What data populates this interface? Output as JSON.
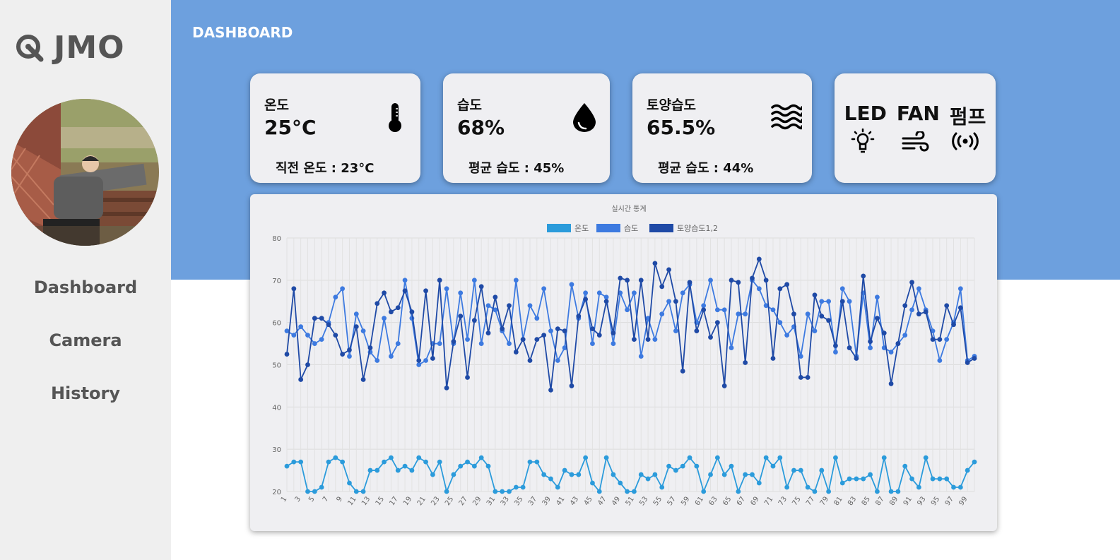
{
  "sidebar": {
    "logo_text": "JMO",
    "nav": [
      {
        "label": "Dashboard"
      },
      {
        "label": "Camera"
      },
      {
        "label": "History"
      }
    ]
  },
  "header": {
    "title": "DASHBOARD"
  },
  "cards": {
    "temperature": {
      "label": "온도",
      "value": "25°C",
      "sub": "직전 온도 : 23°C",
      "icon": "thermometer-icon"
    },
    "humidity": {
      "label": "습도",
      "value": "68%",
      "sub": "평균 습도 : 45%",
      "icon": "droplet-icon"
    },
    "soil": {
      "label": "토양습도",
      "value": "65.5%",
      "sub": "평균 습도 : 44%",
      "icon": "waves-icon"
    },
    "devices": {
      "led": "LED",
      "fan": "FAN",
      "pump": "펌프",
      "icons": [
        "bulb-icon",
        "wind-icon",
        "signal-icon"
      ]
    }
  },
  "colors": {
    "sidebar_bg": "#efefef",
    "header_bg": "#6da0de",
    "temp": "#2b9bdb",
    "humidity": "#3d7ae0",
    "soil": "#1f4aa6"
  },
  "chart_data": {
    "type": "line",
    "title": "실시간 통계",
    "legend_position": "top",
    "ylim": [
      20,
      80
    ],
    "yticks": [
      20,
      30,
      40,
      50,
      60,
      70,
      80
    ],
    "x": [
      1,
      2,
      3,
      4,
      5,
      6,
      7,
      8,
      9,
      10,
      11,
      12,
      13,
      14,
      15,
      16,
      17,
      18,
      19,
      20,
      21,
      22,
      23,
      24,
      25,
      26,
      27,
      28,
      29,
      30,
      31,
      32,
      33,
      34,
      35,
      36,
      37,
      38,
      39,
      40,
      41,
      42,
      43,
      44,
      45,
      46,
      47,
      48,
      49,
      50,
      51,
      52,
      53,
      54,
      55,
      56,
      57,
      58,
      59,
      60,
      61,
      62,
      63,
      64,
      65,
      66,
      67,
      68,
      69,
      70,
      71,
      72,
      73,
      74,
      75,
      76,
      77,
      78,
      79,
      80,
      81,
      82,
      83,
      84,
      85,
      86,
      87,
      88,
      89,
      90,
      91,
      92,
      93,
      94,
      95,
      96,
      97,
      98,
      99,
      100
    ],
    "xtick_labels": [
      "1",
      "3",
      "5",
      "7",
      "9",
      "11",
      "13",
      "15",
      "17",
      "19",
      "21",
      "23",
      "25",
      "27",
      "29",
      "31",
      "33",
      "35",
      "37",
      "39",
      "41",
      "43",
      "45",
      "47",
      "49",
      "51",
      "53",
      "55",
      "57",
      "59",
      "61",
      "63",
      "65",
      "67",
      "69",
      "71",
      "73",
      "75",
      "77",
      "79",
      "81",
      "83",
      "85",
      "87",
      "89",
      "91",
      "93",
      "95",
      "97",
      "99"
    ],
    "series": [
      {
        "name": "온도",
        "color": "#2b9bdb",
        "values": [
          26,
          27,
          27,
          20,
          20,
          21,
          27,
          28,
          27,
          22,
          20,
          20,
          25,
          25,
          27,
          28,
          25,
          26,
          25,
          28,
          27,
          24,
          27,
          20,
          24,
          26,
          27,
          26,
          28,
          26,
          20,
          20,
          20,
          21,
          21,
          27,
          27,
          24,
          23,
          21,
          25,
          24,
          24,
          28,
          22,
          20,
          28,
          24,
          22,
          20,
          20,
          24,
          23,
          24,
          21,
          26,
          25,
          26,
          28,
          26,
          20,
          24,
          28,
          24,
          26,
          20,
          24,
          24,
          22,
          28,
          26,
          28,
          21,
          25,
          25,
          21,
          20,
          25,
          20,
          28,
          22,
          23,
          23,
          23,
          24,
          20,
          28,
          20,
          20,
          26,
          23,
          21,
          28,
          23,
          23,
          23,
          21,
          21,
          25,
          27
        ]
      },
      {
        "name": "습도",
        "color": "#3d7ae0",
        "values": [
          58,
          57,
          59,
          57,
          55,
          56,
          60,
          66,
          68,
          52,
          62,
          58,
          53,
          51,
          61,
          52,
          55,
          70,
          61,
          50,
          51,
          55,
          55,
          68,
          55,
          67,
          56,
          70,
          55,
          64,
          63,
          58,
          55,
          70,
          56,
          64,
          61,
          68,
          58,
          51,
          54,
          69,
          61,
          67,
          55,
          67,
          66,
          55,
          67,
          63,
          67,
          52,
          61,
          56,
          62,
          65,
          58,
          67,
          69,
          60,
          64,
          70,
          63,
          63,
          54,
          62,
          62,
          70,
          68,
          64,
          63,
          60,
          57,
          59,
          52,
          62,
          58,
          65,
          65,
          53,
          68,
          65,
          52,
          67,
          54,
          66,
          54,
          53,
          55,
          57,
          63,
          68,
          63,
          58,
          51,
          56,
          60,
          68,
          51,
          52
        ]
      },
      {
        "name": "토양습도1,2",
        "color": "#1f4aa6",
        "values": [
          52.5,
          68,
          46.5,
          50,
          61,
          61,
          59.5,
          57,
          52.5,
          53.5,
          59,
          46.5,
          54,
          64.5,
          67,
          62.5,
          63.5,
          67.5,
          62.5,
          51,
          67.5,
          51.5,
          70,
          44.5,
          55.5,
          61.5,
          47,
          60.5,
          68.5,
          57.5,
          66,
          58.5,
          64,
          53,
          56,
          51,
          56,
          57,
          44,
          58.5,
          58,
          45,
          61.5,
          65.5,
          58.5,
          57,
          65,
          57.5,
          70.5,
          70,
          56,
          70,
          56,
          74,
          68.5,
          72.5,
          65,
          48.5,
          69.5,
          58,
          63,
          56.5,
          60,
          45,
          70,
          69.5,
          50.5,
          70.5,
          75,
          70,
          51.5,
          68,
          69,
          62,
          47,
          47,
          66.5,
          61.5,
          60.5,
          54.5,
          65,
          54,
          51.5,
          71,
          55.5,
          61,
          57.5,
          45.5,
          55,
          64,
          69.5,
          62,
          62.5,
          56,
          56,
          64,
          59.5,
          63.5,
          50.5,
          51.5
        ]
      }
    ]
  }
}
